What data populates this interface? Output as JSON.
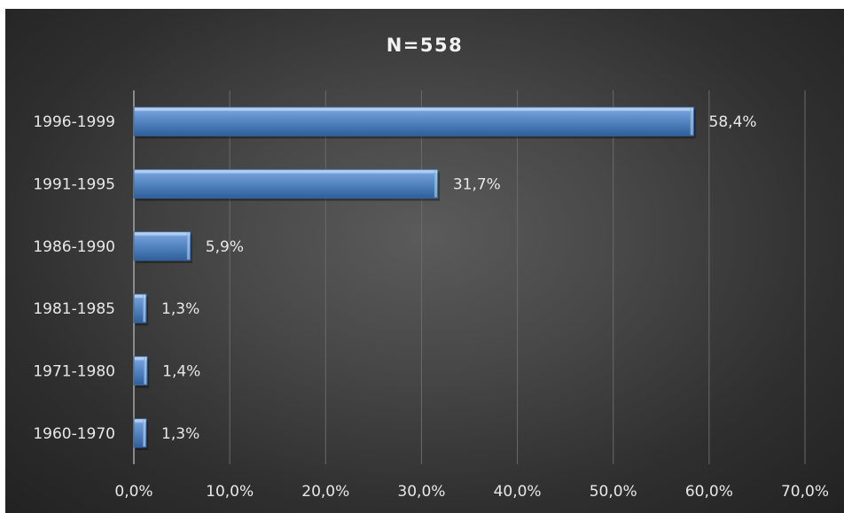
{
  "chart_data": {
    "type": "bar",
    "orientation": "horizontal",
    "title": "N=558",
    "xlabel": "",
    "ylabel": "",
    "categories": [
      "1996-1999",
      "1991-1995",
      "1986-1990",
      "1981-1985",
      "1971-1980",
      "1960-1970"
    ],
    "values": [
      58.4,
      31.7,
      5.9,
      1.3,
      1.4,
      1.3
    ],
    "data_labels": [
      "58,4%",
      "31,7%",
      "5,9%",
      "1,3%",
      "1,4%",
      "1,3%"
    ],
    "xlim": [
      0,
      70
    ],
    "xticks": [
      0,
      10,
      20,
      30,
      40,
      50,
      60,
      70
    ],
    "xtick_labels": [
      "0,0%",
      "10,0%",
      "20,0%",
      "30,0%",
      "40,0%",
      "50,0%",
      "60,0%",
      "70,0%"
    ],
    "grid": "vertical",
    "legend": "none",
    "colors": {
      "bar": "#4f81bd",
      "bar_light": "#8fb4e3",
      "bar_dark": "#2e5a8f",
      "gridline": "#6a6a6a",
      "axis": "#a6a6a6"
    }
  }
}
